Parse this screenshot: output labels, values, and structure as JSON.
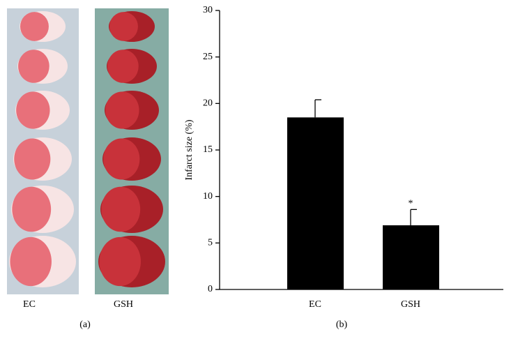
{
  "panel_a": {
    "labels": [
      "EC",
      "GSH"
    ],
    "caption": "(a)"
  },
  "chart_data": {
    "type": "bar",
    "caption": "(b)",
    "y_label": "Infarct size (%)",
    "categories": [
      "EC",
      "GSH"
    ],
    "values": [
      18.5,
      6.9
    ],
    "errors": [
      1.9,
      1.7
    ],
    "markers": [
      null,
      "*"
    ],
    "color": "#000000",
    "ylim": [
      0,
      30
    ],
    "yticks": [
      0,
      5,
      10,
      15,
      20,
      25,
      30
    ],
    "grid": false
  }
}
